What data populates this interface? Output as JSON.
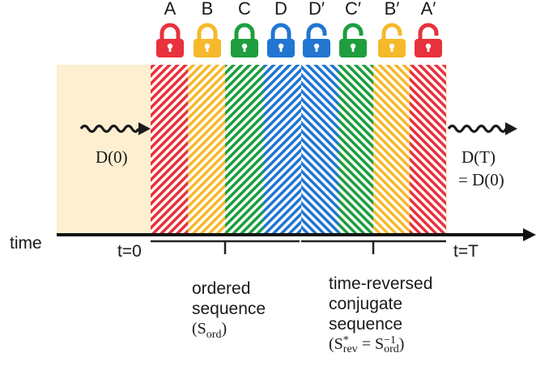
{
  "locks": [
    {
      "label": "A",
      "color": "#e8323c",
      "state": "locked"
    },
    {
      "label": "B",
      "color": "#f5b92b",
      "state": "locked"
    },
    {
      "label": "C",
      "color": "#1e9e3e",
      "state": "locked"
    },
    {
      "label": "D",
      "color": "#2176d1",
      "state": "locked"
    },
    {
      "label": "D′",
      "color": "#2176d1",
      "state": "unlocked"
    },
    {
      "label": "C′",
      "color": "#1e9e3e",
      "state": "unlocked"
    },
    {
      "label": "B′",
      "color": "#f5b92b",
      "state": "unlocked"
    },
    {
      "label": "A′",
      "color": "#e8323c",
      "state": "unlocked"
    }
  ],
  "bands": [
    {
      "color": "#e8323c",
      "hatch": "forward"
    },
    {
      "color": "#f5b92b",
      "hatch": "forward"
    },
    {
      "color": "#1e9e3e",
      "hatch": "forward"
    },
    {
      "color": "#2176d1",
      "hatch": "forward"
    },
    {
      "color": "#2176d1",
      "hatch": "backward"
    },
    {
      "color": "#1e9e3e",
      "hatch": "backward"
    },
    {
      "color": "#f5b92b",
      "hatch": "backward"
    },
    {
      "color": "#e8323c",
      "hatch": "backward"
    }
  ],
  "background_color": "#fdefd0",
  "axis": {
    "label": "time",
    "start_label": "t=0",
    "end_label": "t=T"
  },
  "input_state": {
    "label": "D(0)"
  },
  "output_state": {
    "line1": "D(T)",
    "line2": "= D(0)"
  },
  "ordered_block": {
    "line1": "ordered",
    "line2": "sequence",
    "symbol": "(S",
    "sub": "ord",
    "close": ")"
  },
  "reversed_block": {
    "line1": "time-reversed",
    "line2": "conjugate",
    "line3": "sequence",
    "open": "(S",
    "sup1": "*",
    "sub1": "rev",
    "eq": " = S",
    "sup2": "−1",
    "sub2": "ord",
    "close": ")"
  }
}
